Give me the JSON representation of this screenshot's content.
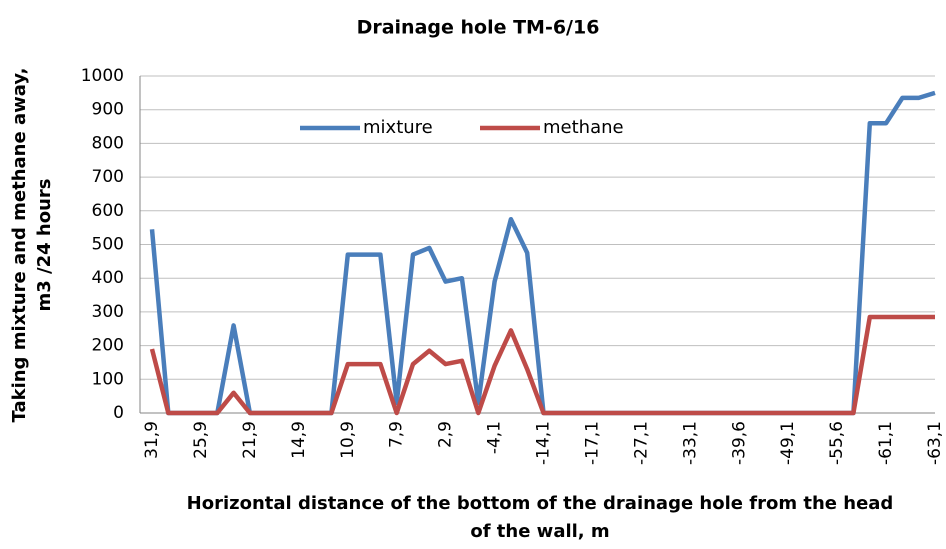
{
  "chart_data": {
    "type": "line",
    "title": "Drainage hole TM-6/16",
    "ylabel": [
      "Taking mixture and methane away,",
      "m3 /24 hours"
    ],
    "xlabel": [
      "Horizontal  distance of the bottom of the drainage hole from the head",
      "of the wall, m"
    ],
    "categories": [
      "31,9",
      null,
      null,
      "25,9",
      null,
      null,
      "21,9",
      null,
      null,
      "14,9",
      null,
      null,
      "10,9",
      null,
      null,
      "7,9",
      null,
      null,
      "2,9",
      null,
      null,
      "-4,1",
      null,
      null,
      "-14,1",
      null,
      null,
      "-17,1",
      null,
      null,
      "-27,1",
      null,
      null,
      "-33,1",
      null,
      null,
      "-39,6",
      null,
      null,
      "-49,1",
      null,
      null,
      "-55,6",
      null,
      null,
      "-61,1",
      null,
      null,
      "-63,1"
    ],
    "series": [
      {
        "name": "mixture",
        "color": "#4a7ebb",
        "values": [
          545,
          0,
          0,
          0,
          0,
          260,
          0,
          0,
          0,
          0,
          0,
          0,
          470,
          470,
          470,
          30,
          470,
          490,
          390,
          400,
          30,
          390,
          575,
          475,
          0,
          0,
          0,
          0,
          0,
          0,
          0,
          0,
          0,
          0,
          0,
          0,
          0,
          0,
          0,
          0,
          0,
          0,
          0,
          0,
          860,
          860,
          935,
          935,
          950
        ]
      },
      {
        "name": "methane",
        "color": "#be4b48",
        "values": [
          190,
          0,
          0,
          0,
          0,
          60,
          0,
          0,
          0,
          0,
          0,
          0,
          145,
          145,
          145,
          0,
          145,
          185,
          145,
          155,
          0,
          140,
          245,
          130,
          0,
          0,
          0,
          0,
          0,
          0,
          0,
          0,
          0,
          0,
          0,
          0,
          0,
          0,
          0,
          0,
          0,
          0,
          0,
          0,
          285,
          285,
          285,
          285,
          285
        ]
      }
    ],
    "ylim": [
      0,
      1000
    ],
    "yticks": [
      0,
      100,
      200,
      300,
      400,
      500,
      600,
      700,
      800,
      900,
      1000
    ],
    "grid": true,
    "legend": "top"
  }
}
